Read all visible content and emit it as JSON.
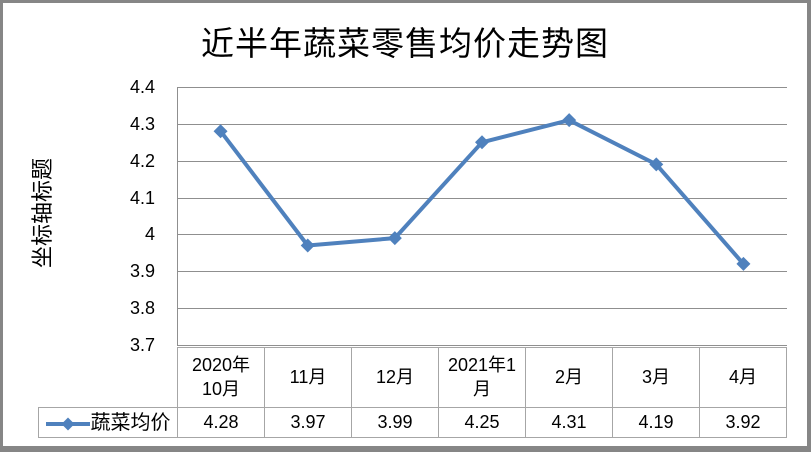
{
  "chart": {
    "title": "近半年蔬菜零售均价走势图",
    "y_axis_title": "坐标轴标题"
  },
  "chart_data": {
    "type": "line",
    "title": "近半年蔬菜零售均价走势图",
    "y_axis_title": "坐标轴标题",
    "categories": [
      "2020年10月",
      "11月",
      "12月",
      "2021年1月",
      "2月",
      "3月",
      "4月"
    ],
    "category_display_lines": [
      [
        "2020年",
        "10月"
      ],
      [
        "11月"
      ],
      [
        "12月"
      ],
      [
        "2021年1",
        "月"
      ],
      [
        "2月"
      ],
      [
        "3月"
      ],
      [
        "4月"
      ]
    ],
    "series": [
      {
        "name": "蔬菜均价",
        "values": [
          4.28,
          3.97,
          3.99,
          4.25,
          4.31,
          4.19,
          3.92
        ]
      }
    ],
    "value_labels": [
      "4.28",
      "3.97",
      "3.99",
      "4.25",
      "4.31",
      "4.19",
      "3.92"
    ],
    "y_ticks": [
      4.4,
      4.3,
      4.2,
      4.1,
      4,
      3.9,
      3.8,
      3.7
    ],
    "y_tick_labels": [
      "4.4",
      "4.3",
      "4.2",
      "4.1",
      "4",
      "3.9",
      "3.8",
      "3.7"
    ],
    "ylim": [
      3.7,
      4.4
    ],
    "grid": true,
    "legend_position": "bottom-left-table",
    "marker": "diamond",
    "line_color": "#4F81BD"
  },
  "colors": {
    "line": "#4F81BD",
    "grid": "#8f8f8f",
    "axis": "#8f8f8f",
    "table_border": "#a6a6a6",
    "frame_border": "#868686",
    "background": "#ffffff",
    "text": "#000000"
  }
}
